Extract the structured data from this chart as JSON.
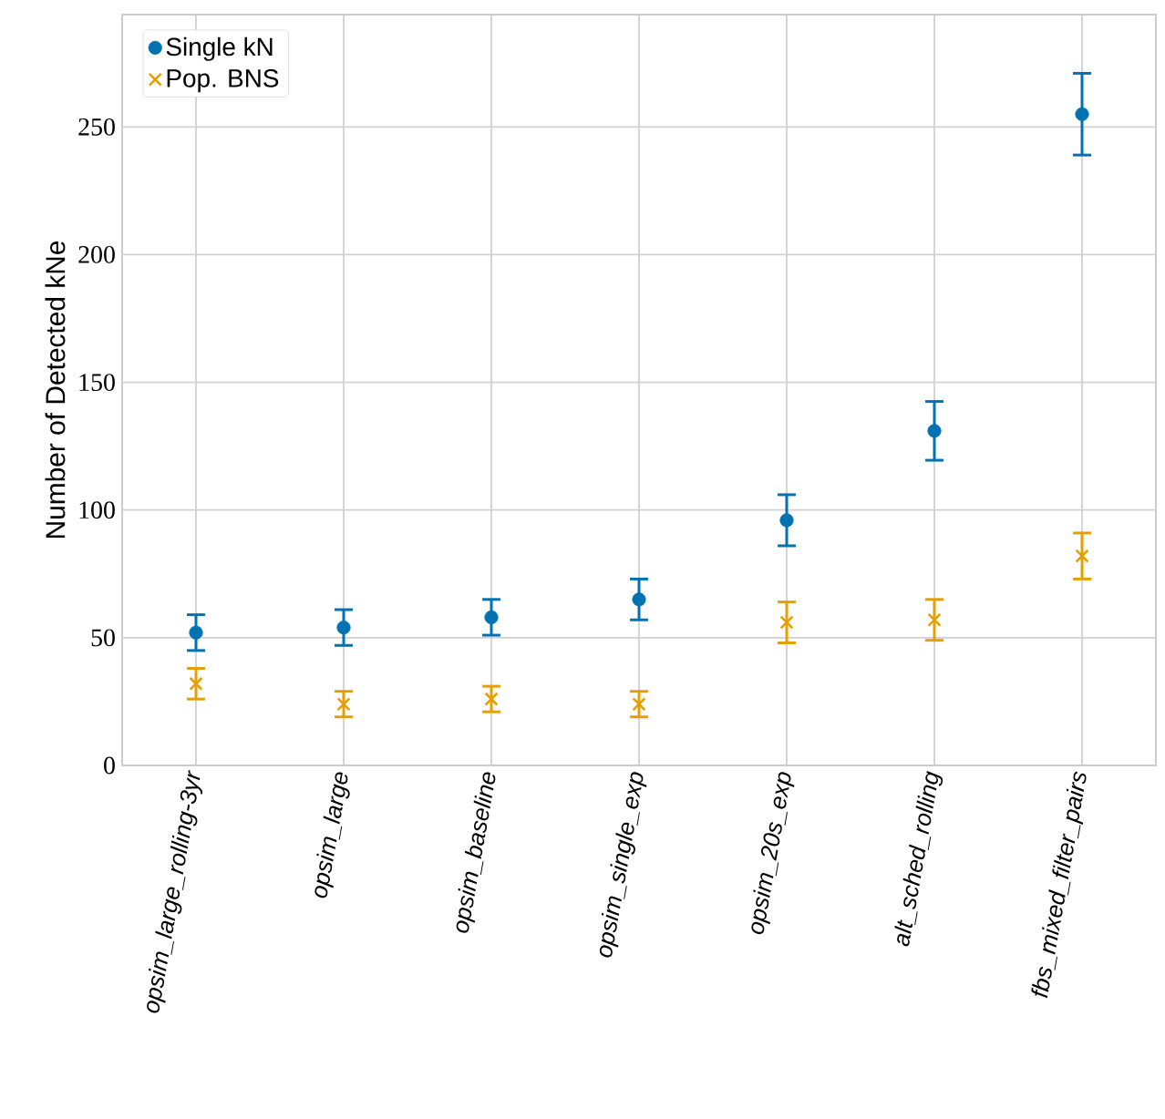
{
  "chart_data": {
    "type": "scatter",
    "categories": [
      "opsim_large_rolling-3yr",
      "opsim_large",
      "opsim_baseline",
      "opsim_single_exp",
      "opsim_20s_exp",
      "alt_sched_rolling",
      "fbs_mixed_filter_pairs"
    ],
    "ylabel": "Number of Detected kNe",
    "series": [
      {
        "name": "Single kN",
        "color": "#0072b2",
        "marker": "circle",
        "values": [
          52,
          54,
          58,
          65,
          96,
          131,
          255
        ],
        "errors": [
          7,
          7,
          7,
          8,
          10,
          11.5,
          16
        ]
      },
      {
        "name": "Pop. BNS",
        "color": "#e69f00",
        "marker": "cross",
        "values": [
          32,
          24,
          26,
          24,
          56,
          57,
          82
        ],
        "errors": [
          6,
          5,
          5,
          5,
          8,
          8,
          9
        ]
      }
    ],
    "ylim": [
      0,
      294
    ],
    "yticks": [
      0,
      50,
      100,
      150,
      200,
      250
    ],
    "grid": true,
    "legend": "top left"
  }
}
